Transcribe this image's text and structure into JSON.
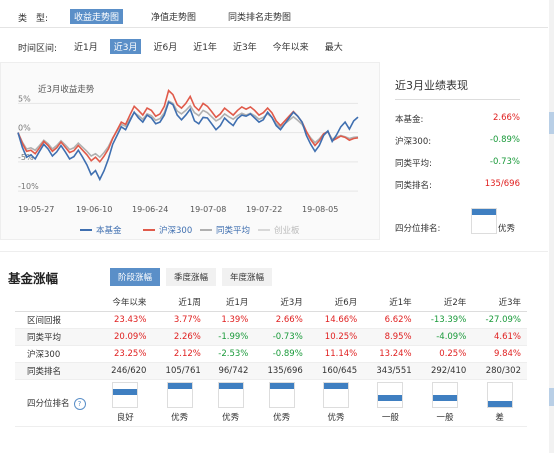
{
  "type_row": {
    "label": "类　型:",
    "options": [
      {
        "label": "收益走势图",
        "active": true
      },
      {
        "label": "净值走势图",
        "active": false
      },
      {
        "label": "同类排名走势图",
        "active": false
      }
    ]
  },
  "time_row": {
    "label": "时间区间:",
    "options": [
      {
        "label": "近1月",
        "active": false
      },
      {
        "label": "近3月",
        "active": true
      },
      {
        "label": "近6月",
        "active": false
      },
      {
        "label": "近1年",
        "active": false
      },
      {
        "label": "近3年",
        "active": false
      },
      {
        "label": "今年以来",
        "active": false
      },
      {
        "label": "最大",
        "active": false
      }
    ]
  },
  "chart_data": {
    "type": "line",
    "title": "近3月收益走势",
    "y_ticks": [
      "5%",
      "0%",
      "-5%",
      "-10%"
    ],
    "y_tick_values": [
      5,
      0,
      -5,
      -10
    ],
    "ylim": [
      -10.5,
      9
    ],
    "x_ticks": [
      "19-05-27",
      "19-06-10",
      "19-06-24",
      "19-07-08",
      "19-07-22",
      "19-08-05"
    ],
    "legend_position": "bottom",
    "series": [
      {
        "name": "本基金",
        "color": "#3f6fb0",
        "values": [
          0,
          -2.5,
          -4.2,
          -3.8,
          -4.5,
          -3.2,
          -2,
          -2.8,
          -4,
          -3.3,
          -2.2,
          -3.3,
          -4.5,
          -4.1,
          -3,
          -4.2,
          -5.5,
          -7.2,
          -6.5,
          -8,
          -6.5,
          -4.5,
          -2,
          -0.5,
          1,
          0.5,
          2,
          3.5,
          2.5,
          1.8,
          3,
          2.5,
          1.5,
          1.8,
          3,
          5.2,
          4.8,
          3,
          2.2,
          3,
          4,
          2,
          1.5,
          2.6,
          2.5,
          1.5,
          0.5,
          1.2,
          2.5,
          1.8,
          1.2,
          2.4,
          3,
          2.8,
          3.2,
          2.5,
          1.8,
          2.2,
          3.5,
          2.6,
          1.2,
          0.5,
          1.5,
          2.5,
          3.5,
          2.8,
          1.8,
          -0.5,
          -2,
          -3.2,
          -2.2,
          -0.5,
          0.3,
          -1.5,
          -0.4,
          1,
          1.8,
          0.6,
          2,
          2.66
        ]
      },
      {
        "name": "沪深300",
        "color": "#e05a4a",
        "values": [
          0,
          -1.8,
          -3.2,
          -3,
          -3.6,
          -2.6,
          -1.5,
          -2.2,
          -3.2,
          -2.6,
          -1.6,
          -2.5,
          -3.4,
          -3.1,
          -2.2,
          -3,
          -3.8,
          -4.8,
          -4.2,
          -5,
          -4,
          -2.8,
          -1,
          0.4,
          1.8,
          1.4,
          3,
          4.5,
          3.8,
          3,
          4.2,
          3.8,
          2.8,
          3.2,
          4.5,
          7.2,
          6.5,
          4.8,
          4.2,
          5,
          6.2,
          4.5,
          3.8,
          5,
          4.5,
          3.6,
          2.6,
          3.2,
          4.2,
          3.6,
          3,
          3.8,
          4.4,
          4,
          4.4,
          3.8,
          3,
          3.4,
          4.2,
          3.4,
          2,
          1.2,
          2,
          2.8,
          3.6,
          2.8,
          1.8,
          0.2,
          -1.2,
          -2.2,
          -1.4,
          -0.2,
          0.2,
          -1.4,
          -1,
          -0.6,
          -0.8,
          -1.3,
          -1,
          -0.89
        ]
      },
      {
        "name": "同类平均",
        "color": "#b0b0b0",
        "values": [
          0,
          -1.6,
          -2.8,
          -2.6,
          -3,
          -2.2,
          -1.3,
          -1.9,
          -2.8,
          -2.2,
          -1.4,
          -2.1,
          -2.9,
          -2.6,
          -1.8,
          -2.5,
          -3.2,
          -4,
          -3.6,
          -4.2,
          -3.4,
          -2.4,
          -0.9,
          0.3,
          1.4,
          1.1,
          2.3,
          3.4,
          2.9,
          2.3,
          3.2,
          2.9,
          2.1,
          2.4,
          3.4,
          5.4,
          5,
          3.7,
          3.2,
          3.8,
          4.6,
          3.4,
          2.9,
          3.8,
          3.4,
          2.7,
          2,
          2.4,
          3.2,
          2.7,
          2.3,
          2.9,
          3.3,
          3,
          3.3,
          2.9,
          2.3,
          2.6,
          3.2,
          2.6,
          1.5,
          0.9,
          1.5,
          2.1,
          2.7,
          2.1,
          1.4,
          0.1,
          -0.9,
          -1.7,
          -1.1,
          -0.2,
          0.1,
          -1.1,
          -0.8,
          -0.5,
          -0.7,
          -1,
          -0.8,
          -0.73
        ]
      },
      {
        "name": "创业板",
        "color": "#d8d8d8",
        "values": []
      }
    ]
  },
  "perf_panel": {
    "title": "近3月业绩表现",
    "rows": [
      {
        "key": "本基金:",
        "value": "2.66%",
        "tone": "red"
      },
      {
        "key": "沪深300:",
        "value": "-0.89%",
        "tone": "green"
      },
      {
        "key": "同类平均:",
        "value": "-0.73%",
        "tone": "green"
      },
      {
        "key": "同类排名:",
        "value": "135/696",
        "tone": "red"
      }
    ],
    "quartile_label": "四分位排名:",
    "quartile_value": "优秀",
    "quartile_level": 1
  },
  "section": {
    "title": "基金涨幅",
    "tabs": [
      {
        "label": "阶段涨幅",
        "active": true
      },
      {
        "label": "季度涨幅",
        "active": false
      },
      {
        "label": "年度涨幅",
        "active": false
      }
    ]
  },
  "table": {
    "columns": [
      "今年以来",
      "近1周",
      "近1月",
      "近3月",
      "近6月",
      "近1年",
      "近2年",
      "近3年"
    ],
    "rows": [
      {
        "label": "区间回报",
        "values": [
          "23.43%",
          "3.77%",
          "1.39%",
          "2.66%",
          "14.66%",
          "6.62%",
          "-13.39%",
          "-27.09%"
        ],
        "tones": [
          "red",
          "red",
          "red",
          "red",
          "red",
          "red",
          "green",
          "green"
        ]
      },
      {
        "label": "同类平均",
        "values": [
          "20.09%",
          "2.26%",
          "-1.99%",
          "-0.73%",
          "10.25%",
          "8.95%",
          "-4.09%",
          "4.61%"
        ],
        "tones": [
          "red",
          "red",
          "green",
          "green",
          "red",
          "red",
          "green",
          "red"
        ]
      },
      {
        "label": "沪深300",
        "values": [
          "23.25%",
          "2.12%",
          "-2.53%",
          "-0.89%",
          "11.14%",
          "13.24%",
          "0.25%",
          "9.84%"
        ],
        "tones": [
          "red",
          "red",
          "green",
          "green",
          "red",
          "red",
          "red",
          "red"
        ]
      },
      {
        "label": "同类排名",
        "values": [
          "246/620",
          "105/761",
          "96/742",
          "135/696",
          "160/645",
          "343/551",
          "292/410",
          "280/302"
        ],
        "tones": [
          "",
          "",
          "",
          "",
          "",
          "",
          "",
          ""
        ]
      }
    ],
    "quartile_row": {
      "label": "四分位排名",
      "help_icon": "question-circle-icon",
      "labels": [
        "良好",
        "优秀",
        "优秀",
        "优秀",
        "优秀",
        "一般",
        "一般",
        "差"
      ],
      "levels": [
        2,
        1,
        1,
        1,
        1,
        3,
        3,
        4
      ]
    }
  }
}
